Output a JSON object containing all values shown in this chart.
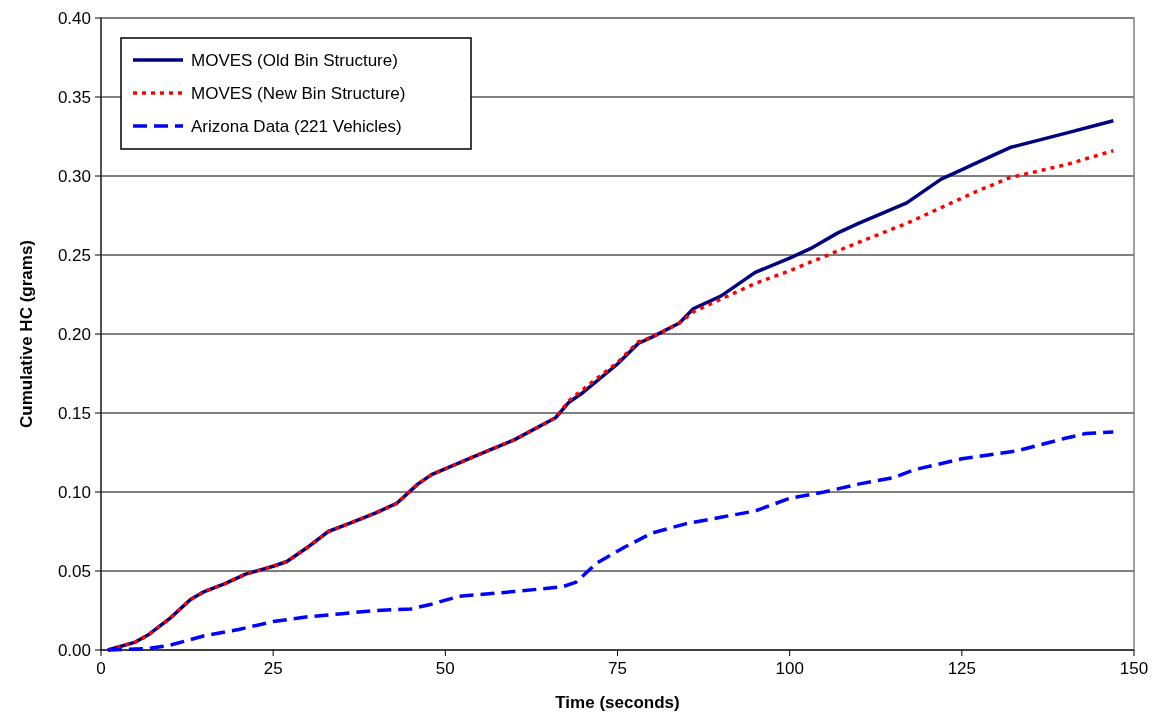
{
  "chart_data": {
    "type": "line",
    "xlabel": "Time (seconds)",
    "ylabel": "Cumulative HC (grams)",
    "xlim": [
      0,
      150
    ],
    "xticks": [
      0,
      25,
      50,
      75,
      100,
      125,
      150
    ],
    "ylim": [
      0,
      0.4
    ],
    "yticks": [
      {
        "value": 0,
        "label": "0.00"
      },
      {
        "value": 0.05,
        "label": "0.05"
      },
      {
        "value": 0.1,
        "label": "0.10"
      },
      {
        "value": 0.15,
        "label": "0.15"
      },
      {
        "value": 0.2,
        "label": "0.20"
      },
      {
        "value": 0.25,
        "label": "0.25"
      },
      {
        "value": 0.3,
        "label": "0.30"
      },
      {
        "value": 0.35,
        "label": "0.35"
      },
      {
        "value": 0.4,
        "label": "0.40"
      }
    ],
    "grid": "y",
    "legend": "top left",
    "series": [
      {
        "name": "MOVES (Old Bin Structure)",
        "color": "#000080",
        "line_style": "solid",
        "x": [
          1,
          5,
          7,
          10,
          13,
          15,
          18,
          21,
          25,
          27,
          30,
          33,
          36,
          40,
          43,
          46,
          48,
          55,
          60,
          66,
          68,
          70,
          75,
          78,
          80,
          84,
          86,
          90,
          95,
          100,
          103,
          107,
          110,
          117,
          122,
          124,
          128,
          132,
          140,
          147
        ],
        "values": [
          0,
          0.005,
          0.01,
          0.02,
          0.032,
          0.037,
          0.042,
          0.048,
          0.053,
          0.056,
          0.065,
          0.075,
          0.08,
          0.087,
          0.093,
          0.105,
          0.111,
          0.124,
          0.133,
          0.147,
          0.157,
          0.163,
          0.181,
          0.194,
          0.198,
          0.207,
          0.216,
          0.224,
          0.239,
          0.248,
          0.254,
          0.264,
          0.27,
          0.283,
          0.298,
          0.302,
          0.31,
          0.318,
          0.327,
          0.335
        ]
      },
      {
        "name": "MOVES (New Bin Structure)",
        "color": "#ff0000",
        "line_style": "dotted",
        "x": [
          1,
          5,
          7,
          10,
          13,
          15,
          18,
          21,
          25,
          27,
          30,
          33,
          36,
          40,
          43,
          46,
          48,
          55,
          60,
          66,
          68,
          70,
          75,
          78,
          80,
          84,
          86,
          90,
          95,
          100,
          105,
          110,
          117,
          122,
          127,
          132,
          140,
          147
        ],
        "values": [
          0,
          0.005,
          0.01,
          0.02,
          0.032,
          0.037,
          0.042,
          0.048,
          0.053,
          0.056,
          0.065,
          0.075,
          0.08,
          0.087,
          0.093,
          0.105,
          0.111,
          0.124,
          0.133,
          0.147,
          0.158,
          0.165,
          0.182,
          0.195,
          0.198,
          0.207,
          0.214,
          0.222,
          0.232,
          0.24,
          0.249,
          0.258,
          0.27,
          0.28,
          0.29,
          0.299,
          0.307,
          0.316
        ]
      },
      {
        "name": "Arizona Data (221 Vehicles)",
        "color": "#0000ff",
        "line_style": "dashed",
        "x": [
          1,
          7,
          10,
          15,
          20,
          25,
          30,
          35,
          40,
          45,
          48,
          52,
          60,
          67,
          69,
          72,
          76,
          80,
          85,
          90,
          95,
          100,
          105,
          110,
          115,
          118,
          125,
          133,
          140,
          143,
          147
        ],
        "values": [
          0,
          0.001,
          0.003,
          0.009,
          0.013,
          0.018,
          0.021,
          0.023,
          0.025,
          0.026,
          0.029,
          0.034,
          0.037,
          0.04,
          0.043,
          0.055,
          0.065,
          0.074,
          0.08,
          0.084,
          0.088,
          0.096,
          0.1,
          0.105,
          0.109,
          0.114,
          0.121,
          0.126,
          0.134,
          0.137,
          0.138
        ]
      }
    ]
  }
}
